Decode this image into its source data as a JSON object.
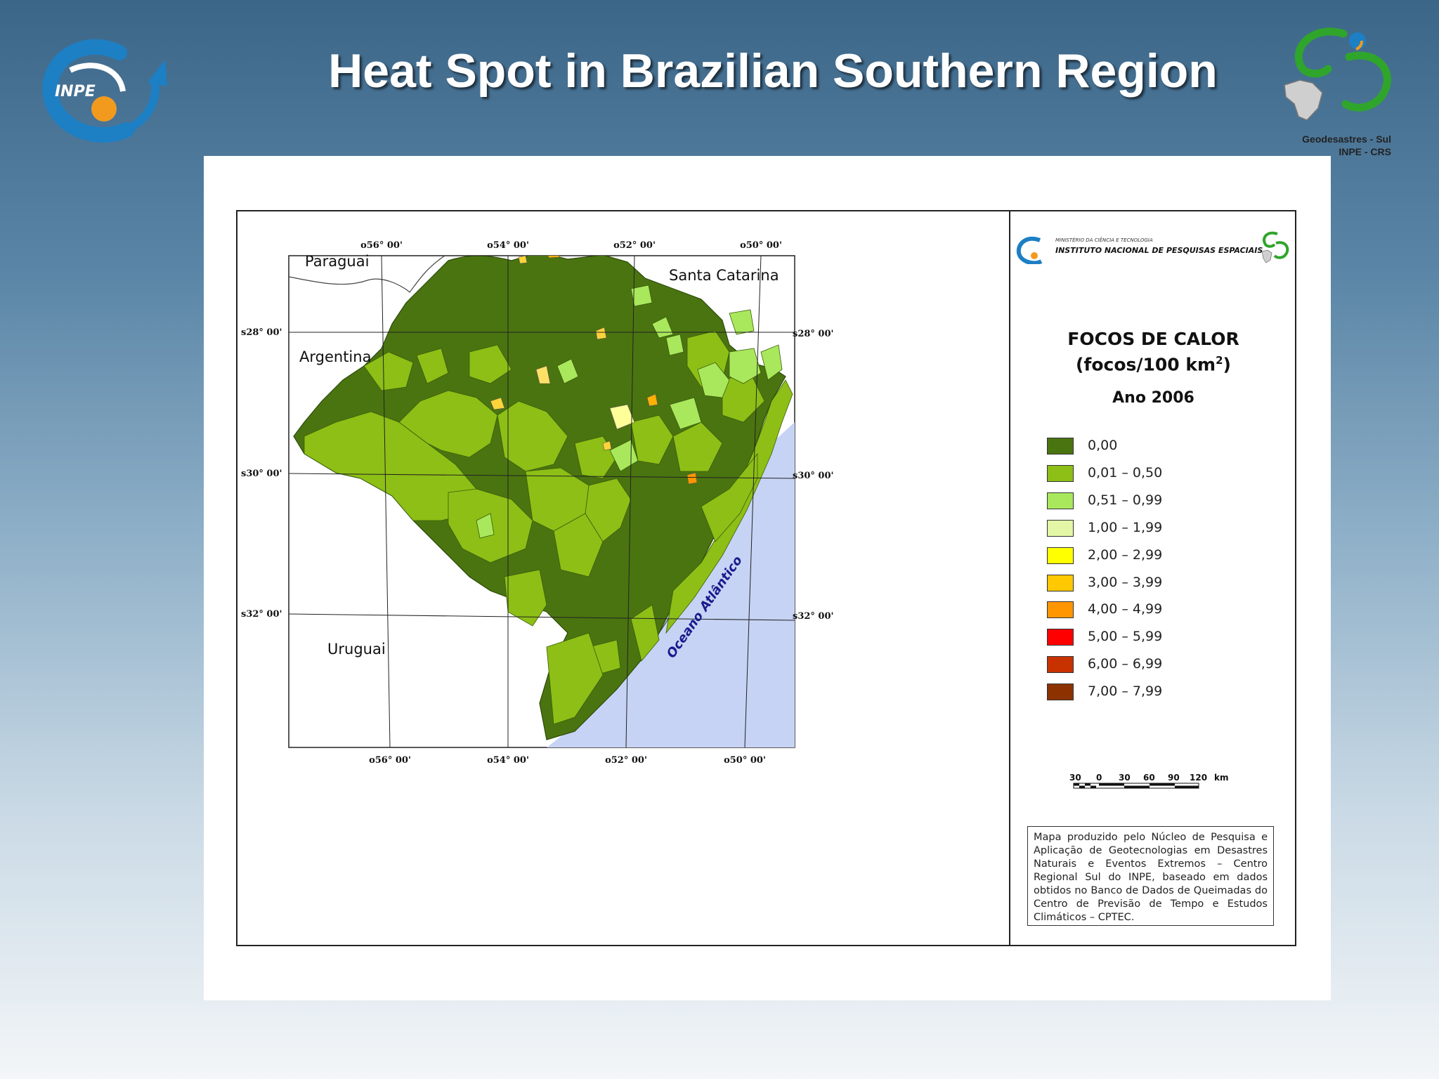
{
  "slide": {
    "title": "Heat Spot in Brazilian Southern Region"
  },
  "logos": {
    "left": {
      "name": "INPE logo",
      "text": "INPE"
    },
    "right": {
      "name": "Geodesastres-Sul logo",
      "caption_line1": "Geodesastres - Sul",
      "caption_line2": "INPE - CRS"
    }
  },
  "map": {
    "graticule_top": [
      "o56° 00'",
      "o54° 00'",
      "o52° 00'",
      "o50° 00'"
    ],
    "graticule_bottom": [
      "o56° 00'",
      "o54° 00'",
      "o52° 00'",
      "o50° 00'"
    ],
    "graticule_left": [
      "s28° 00'",
      "s30° 00'",
      "s32° 00'"
    ],
    "graticule_right": [
      "s28° 00'",
      "s30° 00'",
      "s32° 00'"
    ],
    "labels": {
      "paraguai": "Paraguai",
      "santa_catarina": "Santa Catarina",
      "argentina": "Argentina",
      "uruguai": "Uruguai",
      "ocean": "Oceano Atlântico"
    },
    "colors": {
      "ocean": "#c6d3f5",
      "c0": "#4a7410",
      "c1": "#8dbf16",
      "c2": "#a9e85c",
      "c3": "#e3f7a6",
      "c4": "#ffff00",
      "c5": "#ffc800",
      "c6": "#ff9600",
      "c7": "#ff0000",
      "c8": "#c83200",
      "c9": "#8c3200"
    }
  },
  "legend": {
    "header_ministry": "MINISTÉRIO DA CIÊNCIA E TECNOLOGIA",
    "header_institute": "INSTITUTO NACIONAL DE PESQUISAS ESPACIAIS",
    "title_line1": "FOCOS DE CALOR",
    "title_line2_prefix": "(focos/100 km",
    "title_line2_sup": "2",
    "title_line2_suffix": ")",
    "year": "Ano 2006",
    "classes": [
      {
        "label": "0,00",
        "color": "#4a7410"
      },
      {
        "label": "0,01 – 0,50",
        "color": "#8dbf16"
      },
      {
        "label": "0,51 – 0,99",
        "color": "#a9e85c"
      },
      {
        "label": "1,00 – 1,99",
        "color": "#e3f7a6"
      },
      {
        "label": "2,00 – 2,99",
        "color": "#ffff00"
      },
      {
        "label": "3,00 – 3,99",
        "color": "#ffc800"
      },
      {
        "label": "4,00 – 4,99",
        "color": "#ff9600"
      },
      {
        "label": "5,00 – 5,99",
        "color": "#ff0000"
      },
      {
        "label": "6,00 – 6,99",
        "color": "#c83200"
      },
      {
        "label": "7,00 – 7,99",
        "color": "#8c3200"
      }
    ],
    "scale": {
      "ticks": [
        "30",
        "0",
        "30",
        "60",
        "90",
        "120"
      ],
      "unit": "km"
    },
    "credit": "Mapa produzido pelo Núcleo de Pesquisa e Aplicação de Geotecnologias em Desastres Naturais e Eventos Extremos – Centro Regional Sul do INPE, baseado em dados obtidos no Banco de Dados de Queimadas do Centro de Previsão de Tempo e Estudos Climáticos – CPTEC."
  }
}
